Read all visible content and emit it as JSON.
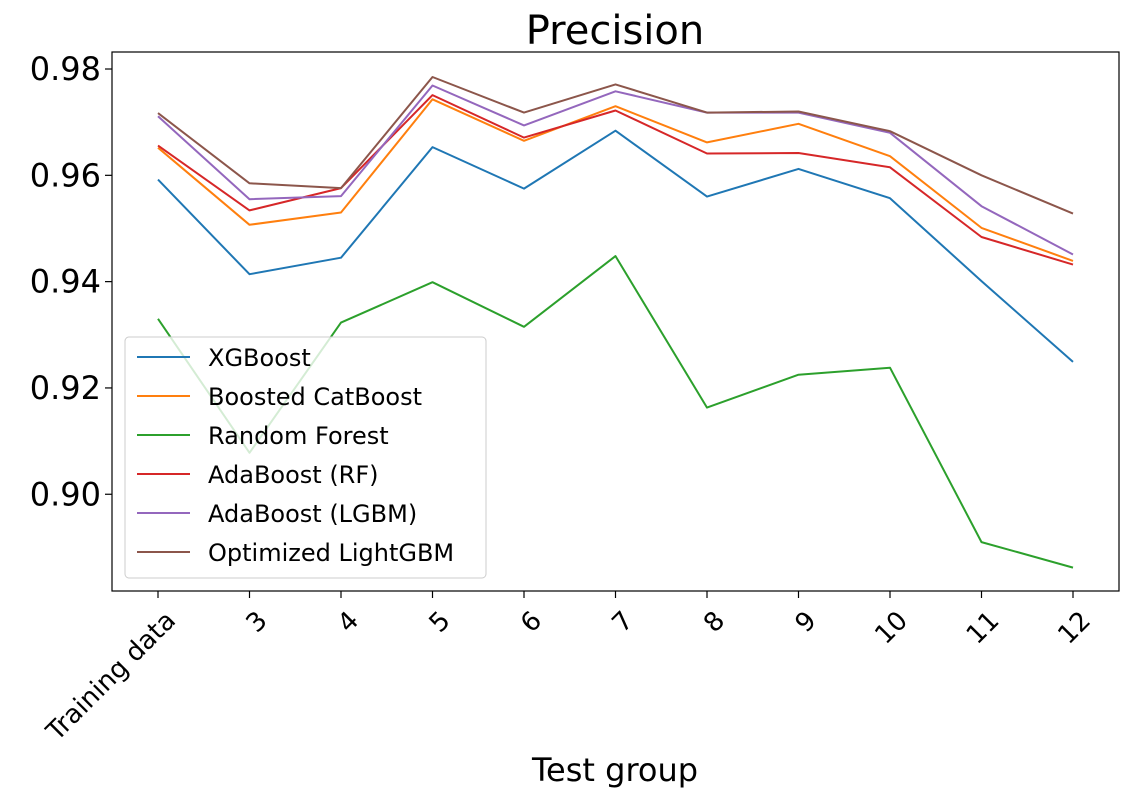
{
  "chart_data": {
    "type": "line",
    "title": "Precision",
    "xlabel": "Test group",
    "ylabel": "",
    "categories": [
      "Training data",
      "3",
      "4",
      "5",
      "6",
      "7",
      "8",
      "9",
      "10",
      "11",
      "12"
    ],
    "ylim": [
      0.8818,
      0.9832
    ],
    "yticks": [
      "0.90",
      "0.92",
      "0.94",
      "0.96",
      "0.98"
    ],
    "ytick_values": [
      0.9,
      0.92,
      0.94,
      0.96,
      0.98
    ],
    "grid": false,
    "legend_position": "lower-left",
    "series": [
      {
        "name": "XGBoost",
        "color": "#1f77b4",
        "values": [
          0.9592,
          0.9414,
          0.9445,
          0.9653,
          0.9575,
          0.9684,
          0.956,
          0.9612,
          0.9557,
          0.9401,
          0.9249
        ]
      },
      {
        "name": "Boosted CatBoost",
        "color": "#ff7f0e",
        "values": [
          0.9652,
          0.9507,
          0.953,
          0.9743,
          0.9665,
          0.973,
          0.9662,
          0.9697,
          0.9636,
          0.9501,
          0.9439
        ]
      },
      {
        "name": "Random Forest",
        "color": "#2ca02c",
        "values": [
          0.933,
          0.9078,
          0.9323,
          0.9399,
          0.9315,
          0.9448,
          0.9163,
          0.9225,
          0.9238,
          0.891,
          0.8862
        ]
      },
      {
        "name": "AdaBoost (RF)",
        "color": "#d62728",
        "values": [
          0.9656,
          0.9534,
          0.9576,
          0.9751,
          0.9671,
          0.9722,
          0.9641,
          0.9642,
          0.9615,
          0.9484,
          0.9432
        ]
      },
      {
        "name": "AdaBoost (LGBM)",
        "color": "#9467bd",
        "values": [
          0.9711,
          0.9555,
          0.9561,
          0.9769,
          0.9694,
          0.9758,
          0.9718,
          0.9718,
          0.968,
          0.9542,
          0.9451
        ]
      },
      {
        "name": "Optimized LightGBM",
        "color": "#8c564b",
        "values": [
          0.9717,
          0.9585,
          0.9576,
          0.9785,
          0.9718,
          0.9771,
          0.9718,
          0.972,
          0.9683,
          0.96,
          0.9528
        ]
      }
    ]
  }
}
